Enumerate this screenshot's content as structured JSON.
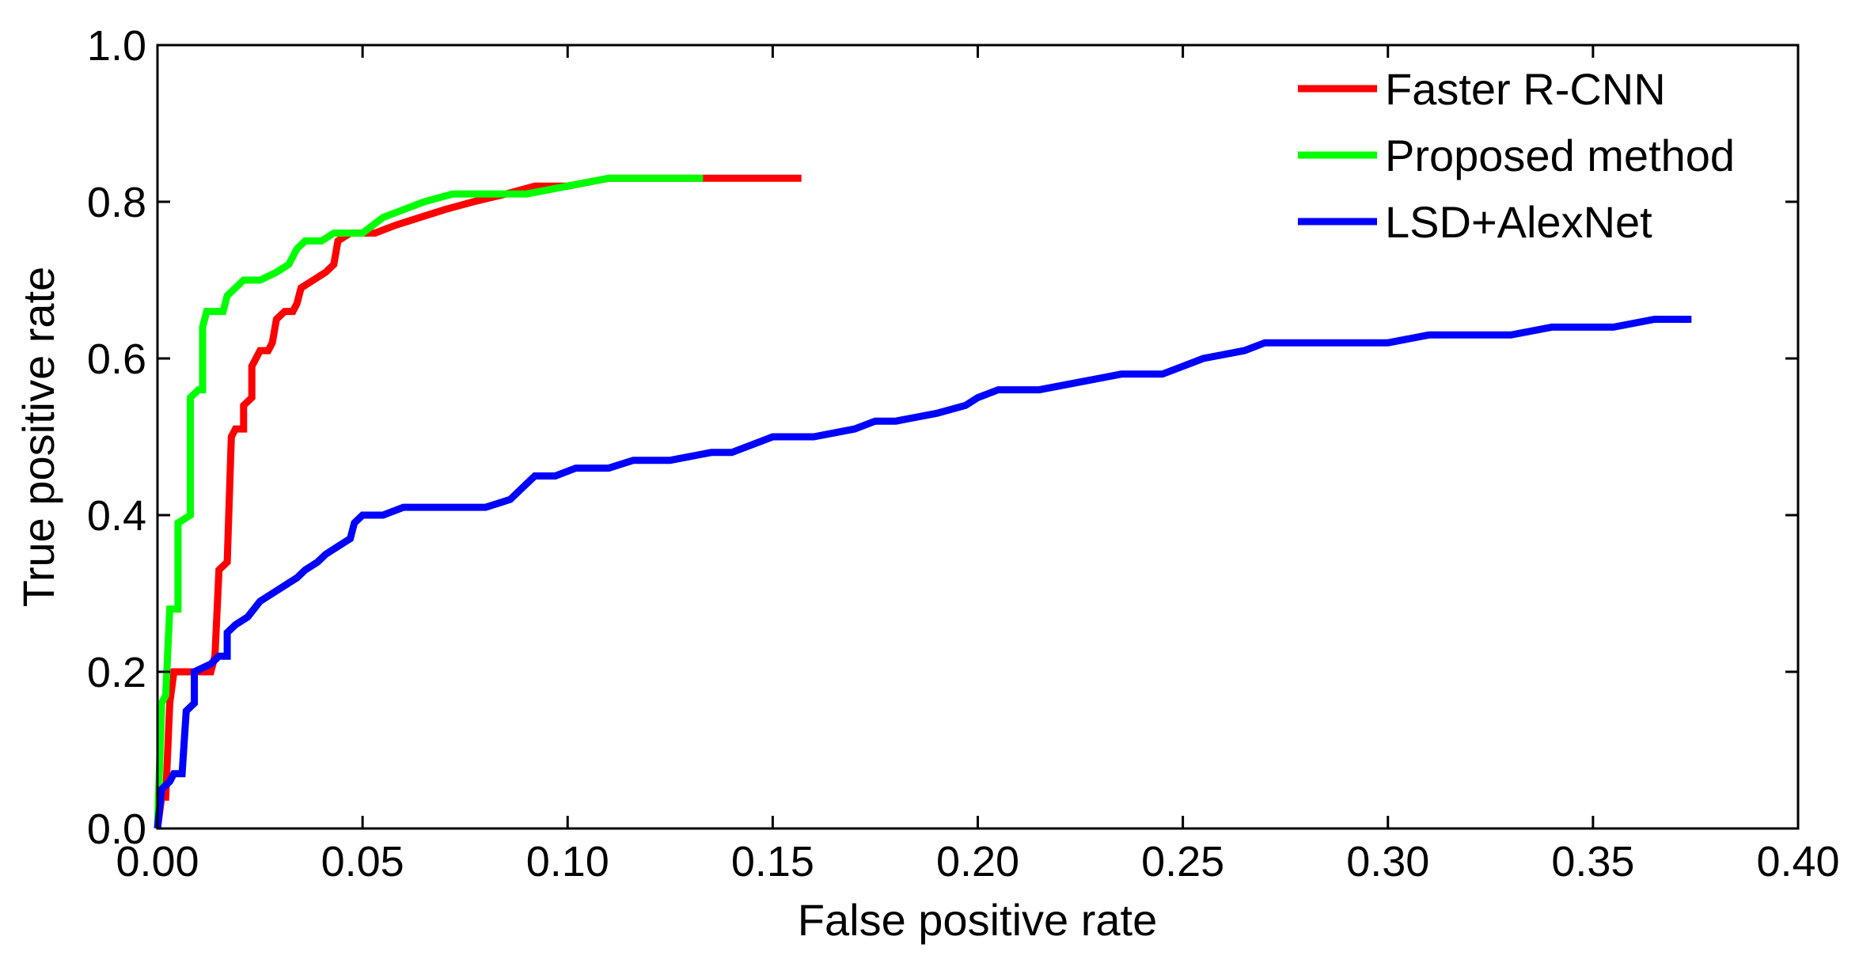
{
  "chart_data": {
    "type": "line",
    "title": "",
    "xlabel": "False positive rate",
    "ylabel": "True positive rate",
    "xlim": [
      0,
      0.4
    ],
    "ylim": [
      0,
      1.0
    ],
    "xticks": [
      "0.00",
      "0.05",
      "0.10",
      "0.15",
      "0.20",
      "0.25",
      "0.30",
      "0.35",
      "0.40"
    ],
    "yticks": [
      "0.0",
      "0.2",
      "0.4",
      "0.6",
      "0.8",
      "1.0"
    ],
    "grid": false,
    "legend_position": "top-right",
    "series": [
      {
        "name": "Faster R-CNN",
        "color": "#ff0000",
        "points": [
          [
            0.0,
            0.0
          ],
          [
            0.001,
            0.04
          ],
          [
            0.002,
            0.04
          ],
          [
            0.003,
            0.16
          ],
          [
            0.004,
            0.2
          ],
          [
            0.013,
            0.2
          ],
          [
            0.014,
            0.22
          ],
          [
            0.015,
            0.33
          ],
          [
            0.017,
            0.34
          ],
          [
            0.018,
            0.5
          ],
          [
            0.019,
            0.51
          ],
          [
            0.021,
            0.51
          ],
          [
            0.021,
            0.54
          ],
          [
            0.023,
            0.55
          ],
          [
            0.023,
            0.59
          ],
          [
            0.025,
            0.61
          ],
          [
            0.027,
            0.61
          ],
          [
            0.028,
            0.62
          ],
          [
            0.029,
            0.65
          ],
          [
            0.031,
            0.66
          ],
          [
            0.033,
            0.66
          ],
          [
            0.034,
            0.67
          ],
          [
            0.035,
            0.69
          ],
          [
            0.038,
            0.7
          ],
          [
            0.041,
            0.71
          ],
          [
            0.043,
            0.72
          ],
          [
            0.044,
            0.75
          ],
          [
            0.047,
            0.76
          ],
          [
            0.053,
            0.76
          ],
          [
            0.058,
            0.77
          ],
          [
            0.064,
            0.78
          ],
          [
            0.07,
            0.79
          ],
          [
            0.077,
            0.8
          ],
          [
            0.085,
            0.81
          ],
          [
            0.092,
            0.82
          ],
          [
            0.1,
            0.82
          ],
          [
            0.11,
            0.83
          ],
          [
            0.13,
            0.83
          ],
          [
            0.157,
            0.83
          ]
        ]
      },
      {
        "name": "Proposed method",
        "color": "#00ff00",
        "points": [
          [
            0.0,
            0.0
          ],
          [
            0.001,
            0.16
          ],
          [
            0.002,
            0.17
          ],
          [
            0.003,
            0.28
          ],
          [
            0.005,
            0.28
          ],
          [
            0.005,
            0.39
          ],
          [
            0.008,
            0.4
          ],
          [
            0.008,
            0.55
          ],
          [
            0.01,
            0.56
          ],
          [
            0.011,
            0.56
          ],
          [
            0.011,
            0.64
          ],
          [
            0.012,
            0.66
          ],
          [
            0.016,
            0.66
          ],
          [
            0.017,
            0.68
          ],
          [
            0.019,
            0.69
          ],
          [
            0.021,
            0.7
          ],
          [
            0.025,
            0.7
          ],
          [
            0.029,
            0.71
          ],
          [
            0.032,
            0.72
          ],
          [
            0.034,
            0.74
          ],
          [
            0.036,
            0.75
          ],
          [
            0.04,
            0.75
          ],
          [
            0.043,
            0.76
          ],
          [
            0.05,
            0.76
          ],
          [
            0.055,
            0.78
          ],
          [
            0.06,
            0.79
          ],
          [
            0.065,
            0.8
          ],
          [
            0.072,
            0.81
          ],
          [
            0.08,
            0.81
          ],
          [
            0.09,
            0.81
          ],
          [
            0.1,
            0.82
          ],
          [
            0.11,
            0.83
          ],
          [
            0.12,
            0.83
          ],
          [
            0.133,
            0.83
          ]
        ]
      },
      {
        "name": "LSD+AlexNet",
        "color": "#0000ff",
        "points": [
          [
            0.0,
            0.0
          ],
          [
            0.001,
            0.05
          ],
          [
            0.003,
            0.06
          ],
          [
            0.004,
            0.07
          ],
          [
            0.006,
            0.07
          ],
          [
            0.007,
            0.15
          ],
          [
            0.009,
            0.16
          ],
          [
            0.009,
            0.2
          ],
          [
            0.013,
            0.21
          ],
          [
            0.015,
            0.22
          ],
          [
            0.017,
            0.22
          ],
          [
            0.017,
            0.25
          ],
          [
            0.019,
            0.26
          ],
          [
            0.022,
            0.27
          ],
          [
            0.025,
            0.29
          ],
          [
            0.028,
            0.3
          ],
          [
            0.031,
            0.31
          ],
          [
            0.034,
            0.32
          ],
          [
            0.036,
            0.33
          ],
          [
            0.039,
            0.34
          ],
          [
            0.041,
            0.35
          ],
          [
            0.044,
            0.36
          ],
          [
            0.047,
            0.37
          ],
          [
            0.048,
            0.39
          ],
          [
            0.05,
            0.4
          ],
          [
            0.055,
            0.4
          ],
          [
            0.06,
            0.41
          ],
          [
            0.065,
            0.41
          ],
          [
            0.07,
            0.41
          ],
          [
            0.08,
            0.41
          ],
          [
            0.086,
            0.42
          ],
          [
            0.088,
            0.43
          ],
          [
            0.09,
            0.44
          ],
          [
            0.092,
            0.45
          ],
          [
            0.097,
            0.45
          ],
          [
            0.102,
            0.46
          ],
          [
            0.11,
            0.46
          ],
          [
            0.116,
            0.47
          ],
          [
            0.125,
            0.47
          ],
          [
            0.135,
            0.48
          ],
          [
            0.14,
            0.48
          ],
          [
            0.145,
            0.49
          ],
          [
            0.15,
            0.5
          ],
          [
            0.16,
            0.5
          ],
          [
            0.17,
            0.51
          ],
          [
            0.175,
            0.52
          ],
          [
            0.18,
            0.52
          ],
          [
            0.19,
            0.53
          ],
          [
            0.197,
            0.54
          ],
          [
            0.2,
            0.55
          ],
          [
            0.205,
            0.56
          ],
          [
            0.215,
            0.56
          ],
          [
            0.225,
            0.57
          ],
          [
            0.235,
            0.58
          ],
          [
            0.245,
            0.58
          ],
          [
            0.25,
            0.59
          ],
          [
            0.255,
            0.6
          ],
          [
            0.265,
            0.61
          ],
          [
            0.27,
            0.62
          ],
          [
            0.28,
            0.62
          ],
          [
            0.3,
            0.62
          ],
          [
            0.31,
            0.63
          ],
          [
            0.33,
            0.63
          ],
          [
            0.34,
            0.64
          ],
          [
            0.355,
            0.64
          ],
          [
            0.365,
            0.65
          ],
          [
            0.374,
            0.65
          ]
        ]
      }
    ]
  }
}
